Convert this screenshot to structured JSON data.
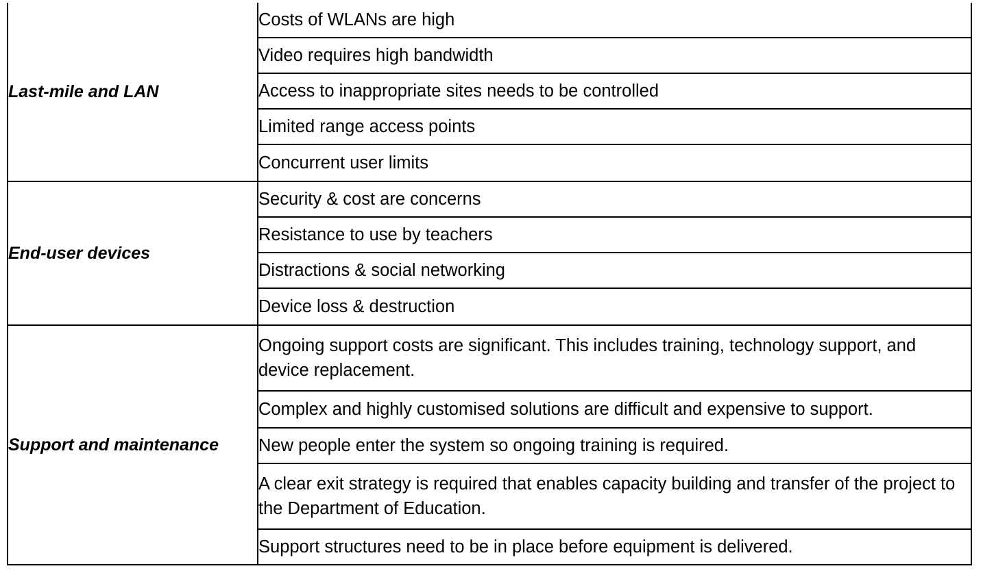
{
  "table": {
    "groups": [
      {
        "category": "Last-mile and LAN",
        "items": [
          "Costs of WLANs are high",
          "Video requires high bandwidth",
          "Access to inappropriate sites needs to be controlled",
          "Limited range access points",
          "Concurrent user limits"
        ]
      },
      {
        "category": "End-user devices",
        "items": [
          "Security & cost are concerns",
          "Resistance to use by teachers",
          "Distractions & social networking",
          "Device loss & destruction"
        ]
      },
      {
        "category": "Support and maintenance",
        "items": [
          "Ongoing support costs are significant. This includes training, technology support, and device replacement.",
          "Complex and highly customised solutions are difficult and expensive to support.",
          "New people enter the system so ongoing training is required.",
          "A clear exit strategy is required that enables capacity building and transfer of the project to the Department of Education.",
          "Support structures need to be in place before equipment is delivered."
        ]
      }
    ]
  }
}
